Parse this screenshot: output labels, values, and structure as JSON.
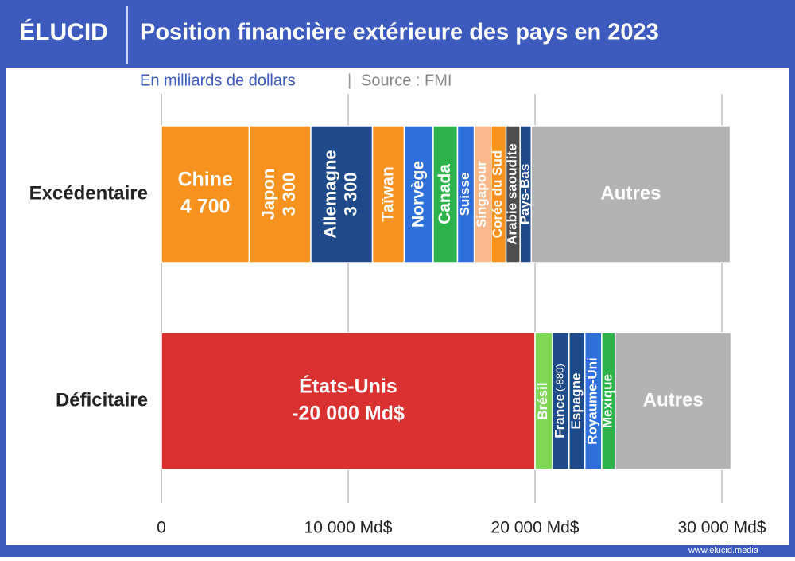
{
  "chart_data": {
    "type": "stacked-bar",
    "logo": "ÉLUCID",
    "title": "Position financière extérieure des pays en 2023",
    "subtitle": "En milliards de dollars",
    "source": "Source : FMI",
    "footer": "www.elucid.media",
    "xlim": [
      0,
      30000
    ],
    "xticks": [
      0,
      {
        "value": 10000,
        "label": "10 000 Md$"
      },
      {
        "value": 20000,
        "label": "20 000 Md$"
      },
      {
        "value": 30000,
        "label": "30 000 Md$"
      }
    ],
    "grid": true,
    "rows": [
      {
        "category": "Excédentaire",
        "segments": [
          {
            "name": "Chine",
            "color": "#f7921e",
            "value": 4700,
            "value_label": "4 700"
          },
          {
            "name": "Japon",
            "color": "#f7921e",
            "value": 3300,
            "value_label": "3 300"
          },
          {
            "name": "Allemagne",
            "color": "#1f4a8a",
            "value": 3300,
            "value_label": "3 300"
          },
          {
            "name": "Taïwan",
            "color": "#f7921e",
            "value": 1700
          },
          {
            "name": "Norvège",
            "color": "#2e6fd9",
            "value": 1550
          },
          {
            "name": "Canada",
            "color": "#2cb34a",
            "value": 1300
          },
          {
            "name": "Suisse",
            "color": "#2e6fd9",
            "value": 900
          },
          {
            "name": "Singapour",
            "color": "#f9b98a",
            "value": 900
          },
          {
            "name": "Corée du Sud",
            "color": "#f7921e",
            "value": 800
          },
          {
            "name": "Arabie saoudite",
            "color": "#4d4d4d",
            "value": 750
          },
          {
            "name": "Pays-Bas",
            "color": "#1f4a8a",
            "value": 600
          },
          {
            "name": "Autres",
            "color": "#b3b3b3",
            "value": 10650
          }
        ]
      },
      {
        "category": "Déficitaire",
        "segments": [
          {
            "name": "États-Unis",
            "color": "#d93030",
            "value": -20000,
            "value_label": "-20 000 Md$"
          },
          {
            "name": "Brésil",
            "color": "#7fd957",
            "value": -940
          },
          {
            "name": "France",
            "color": "#1f4a8a",
            "value": -880,
            "value_label": "(-880)"
          },
          {
            "name": "Espagne",
            "color": "#1f4a8a",
            "value": -850
          },
          {
            "name": "Royaume-Uni",
            "color": "#2e6fd9",
            "value": -900
          },
          {
            "name": "Mexique",
            "color": "#2cb34a",
            "value": -720
          },
          {
            "name": "Autres",
            "color": "#b3b3b3",
            "value": -6200
          }
        ]
      }
    ]
  }
}
